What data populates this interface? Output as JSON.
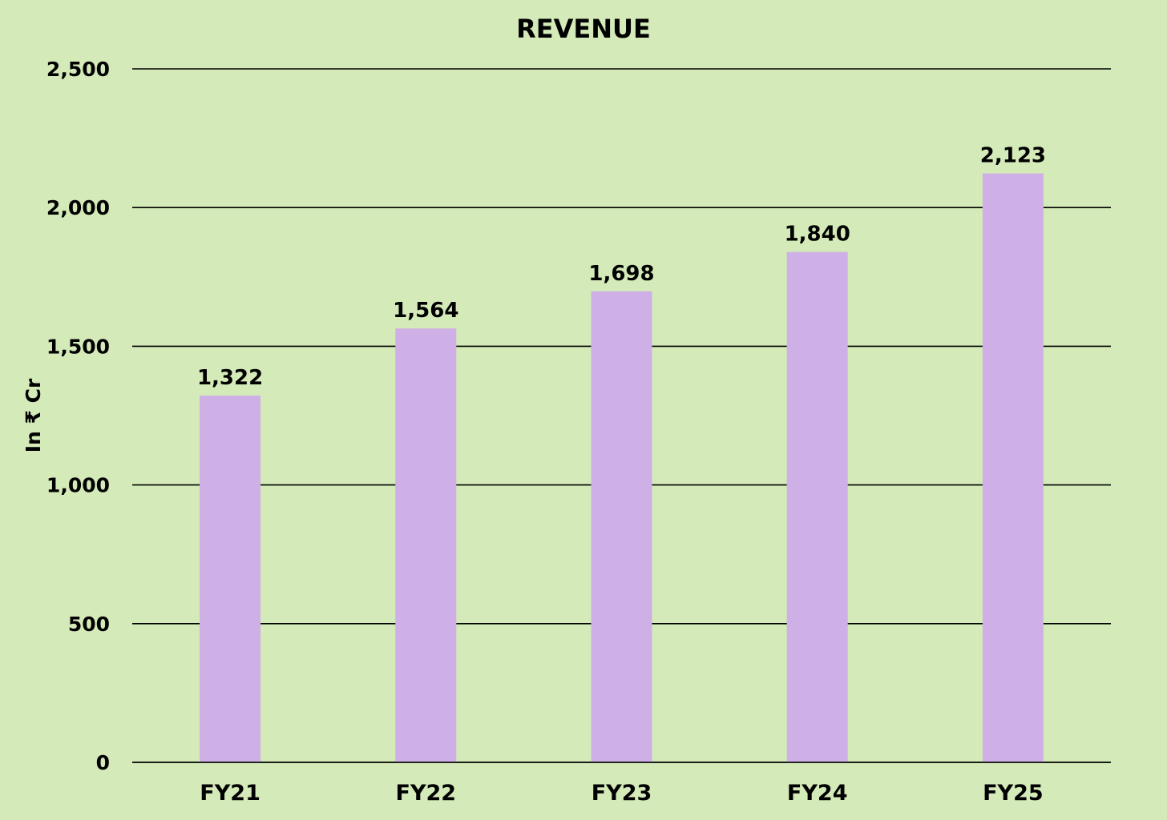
{
  "colors": {
    "background": "#d4eab8",
    "bar": "#cfb0e6",
    "gridline": "#000000",
    "text": "#000000"
  },
  "chart_data": {
    "type": "bar",
    "title": "REVENUE",
    "xlabel": "",
    "ylabel": "In ₹ Cr",
    "categories": [
      "FY21",
      "FY22",
      "FY23",
      "FY24",
      "FY25"
    ],
    "values": [
      1322,
      1564,
      1698,
      1840,
      2123
    ],
    "value_labels": [
      "1,322",
      "1,564",
      "1,698",
      "1,840",
      "2,123"
    ],
    "ylim": [
      0,
      2500
    ],
    "yticks": [
      0,
      500,
      1000,
      1500,
      2000,
      2500
    ],
    "ytick_labels": [
      "0",
      "500",
      "1,000",
      "1,500",
      "2,000",
      "2,500"
    ],
    "grid": true,
    "legend": "none"
  }
}
